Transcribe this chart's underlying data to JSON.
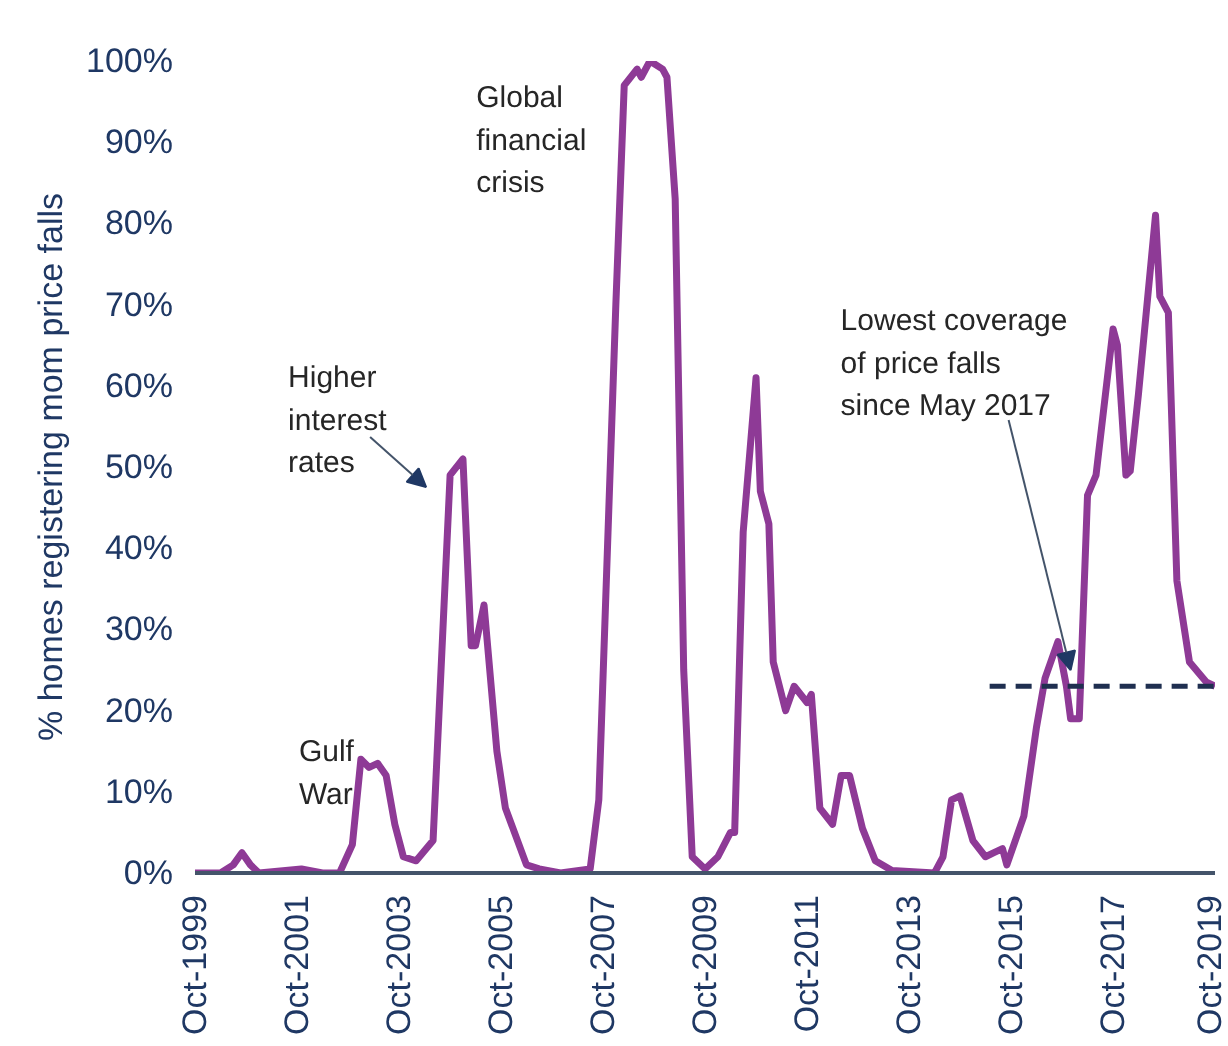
{
  "chart_data": {
    "type": "line",
    "ylabel": "% homes registering mom price falls",
    "x": [
      "1999-10",
      "2000-04",
      "2000-07",
      "2000-09",
      "2000-11",
      "2001-01",
      "2001-11",
      "2002-04",
      "2002-08",
      "2002-11",
      "2003-01",
      "2003-03",
      "2003-05",
      "2003-07",
      "2003-09",
      "2003-11",
      "2004-02",
      "2004-06",
      "2004-10",
      "2005-01",
      "2005-03",
      "2005-04",
      "2005-06",
      "2005-09",
      "2005-11",
      "2006-04",
      "2006-07",
      "2006-12",
      "2007-07",
      "2007-09",
      "2008-01",
      "2008-03",
      "2008-06",
      "2008-07",
      "2008-09",
      "2008-12",
      "2009-01",
      "2009-03",
      "2009-05",
      "2009-07",
      "2009-10",
      "2010-01",
      "2010-04",
      "2010-05",
      "2010-07",
      "2010-10",
      "2010-11",
      "2011-01",
      "2011-02",
      "2011-05",
      "2011-07",
      "2011-10",
      "2011-11",
      "2012-01",
      "2012-04",
      "2012-06",
      "2012-08",
      "2012-11",
      "2013-02",
      "2013-06",
      "2014-04",
      "2014-06",
      "2014-08",
      "2014-10",
      "2015-01",
      "2015-04",
      "2015-06",
      "2015-08",
      "2015-09",
      "2016-01",
      "2016-04",
      "2016-06",
      "2016-09",
      "2016-11",
      "2016-12",
      "2017-02",
      "2017-04",
      "2017-06",
      "2017-10",
      "2017-11",
      "2018-01",
      "2018-02",
      "2018-04",
      "2018-08",
      "2018-09",
      "2018-11",
      "2019-01",
      "2019-04",
      "2019-08",
      "2019-10"
    ],
    "series": [
      {
        "color": "#8e3a96",
        "values": [
          0,
          0,
          1,
          2.5,
          1,
          0,
          0.5,
          0,
          0,
          3.5,
          14,
          13,
          13.5,
          12,
          6,
          2,
          1.5,
          4,
          49,
          51,
          28,
          28,
          33,
          15,
          8,
          1,
          0.5,
          0,
          0.5,
          9,
          70,
          97,
          99,
          98,
          100,
          99,
          98,
          83,
          25,
          2,
          0.5,
          2,
          5,
          5,
          42,
          61,
          47,
          43,
          26,
          20,
          23,
          21,
          22,
          8,
          6,
          12,
          12,
          5.5,
          1.5,
          0.3,
          0,
          2,
          9,
          9.5,
          4,
          2,
          2.5,
          3,
          1,
          7,
          18,
          24,
          28.5,
          23,
          19,
          19,
          46.5,
          49,
          67,
          65,
          49,
          49.5,
          59,
          81,
          71,
          69,
          36,
          26,
          23.5,
          23
        ]
      },
      {
        "color": "#1f2f50",
        "line_style": "dashed",
        "x": [
          "2015-05",
          "2019-10"
        ],
        "values": [
          23,
          23
        ]
      }
    ],
    "xlim": [
      "1999-10",
      "2019-10"
    ],
    "xticks": [
      {
        "value": "1999-10",
        "label": "Oct-1999"
      },
      {
        "value": "2001-10",
        "label": "Oct-2001"
      },
      {
        "value": "2003-10",
        "label": "Oct-2003"
      },
      {
        "value": "2005-10",
        "label": "Oct-2005"
      },
      {
        "value": "2007-10",
        "label": "Oct-2007"
      },
      {
        "value": "2009-10",
        "label": "Oct-2009"
      },
      {
        "value": "2011-10",
        "label": "Oct-2011"
      },
      {
        "value": "2013-10",
        "label": "Oct-2013"
      },
      {
        "value": "2015-10",
        "label": "Oct-2015"
      },
      {
        "value": "2017-10",
        "label": "Oct-2017"
      },
      {
        "value": "2019-10",
        "label": "Oct-2019"
      }
    ],
    "ylim": [
      0,
      100
    ],
    "yticks": [
      {
        "value": 0,
        "label": "0%"
      },
      {
        "value": 10,
        "label": "10%"
      },
      {
        "value": 20,
        "label": "20%"
      },
      {
        "value": 30,
        "label": "30%"
      },
      {
        "value": 40,
        "label": "40%"
      },
      {
        "value": 50,
        "label": "50%"
      },
      {
        "value": 60,
        "label": "60%"
      },
      {
        "value": 70,
        "label": "70%"
      },
      {
        "value": 80,
        "label": "80%"
      },
      {
        "value": 90,
        "label": "90%"
      },
      {
        "value": 100,
        "label": "100%"
      }
    ],
    "annotations": [
      {
        "text": "Gulf\nWar",
        "x": "2003-01",
        "y": 14
      },
      {
        "text": "Higher\ninterest\nrates",
        "x": "2004-10",
        "y": 49
      },
      {
        "text": "Global\nfinancial\ncrisis",
        "x": "2008-03",
        "y": 97
      },
      {
        "text": "Lowest coverage\nof price falls\nsince May 2017",
        "x": "2016-12",
        "y": 25
      }
    ],
    "grid": false,
    "line_style": "solid"
  }
}
